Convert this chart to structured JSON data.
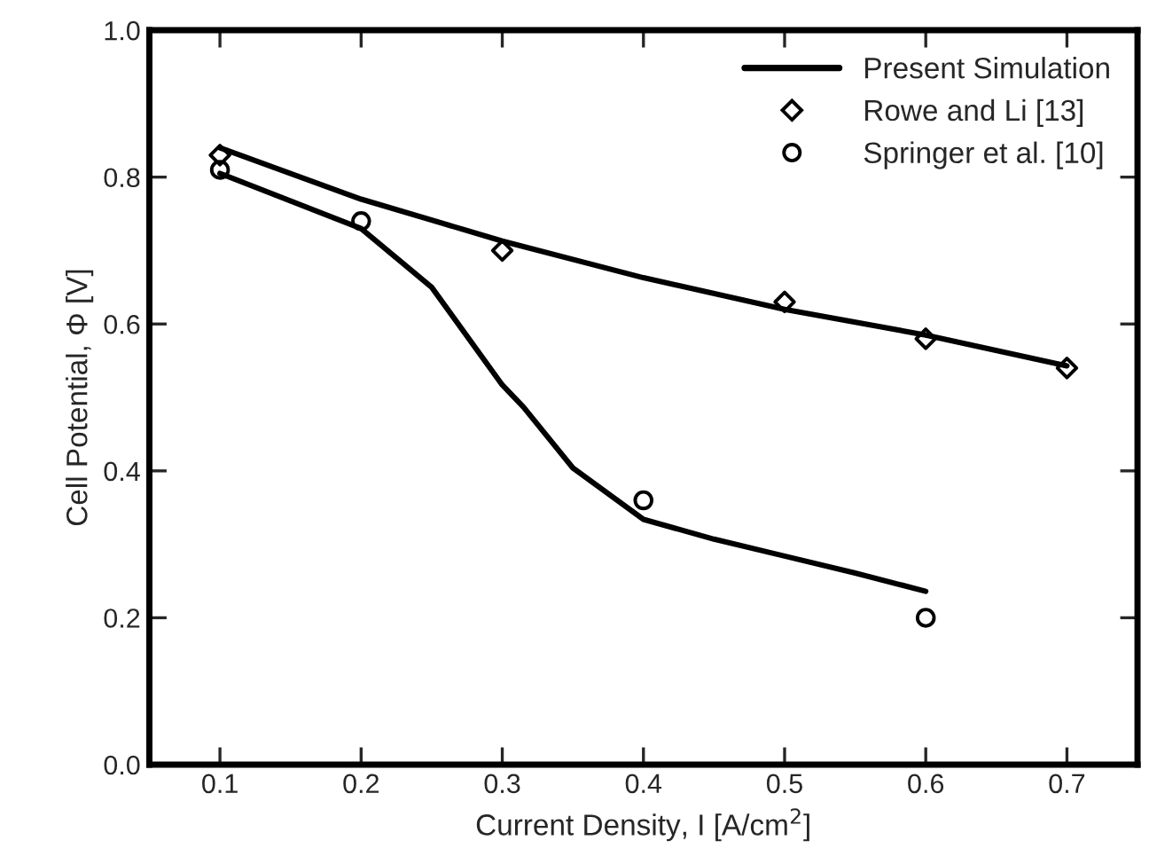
{
  "chart_data": {
    "type": "line",
    "xlabel": "Current Density, I [A/cm$^{2}$]",
    "ylabel": "Cell Potential, Φ [V]",
    "xlim": [
      0.05,
      0.75
    ],
    "ylim": [
      0.0,
      1.0
    ],
    "xticks": [
      0.1,
      0.2,
      0.3,
      0.4,
      0.5,
      0.6,
      0.7
    ],
    "yticks": [
      {
        "value": 0.0,
        "label": "0.0"
      },
      0.2,
      0.4,
      0.6,
      0.8,
      {
        "value": 1.0,
        "label": "1.0"
      }
    ],
    "grid": false,
    "legend": "top right",
    "series": [
      {
        "name": "Present Simulation",
        "color": "#000000",
        "marker": "none",
        "x": [
          0.1,
          0.2,
          0.3,
          0.4,
          0.5,
          0.6,
          0.7
        ],
        "values": [
          0.84,
          0.77,
          0.713,
          0.663,
          0.62,
          0.585,
          0.543
        ]
      },
      {
        "color": "#000000",
        "marker": "none",
        "x": [
          0.1,
          0.2,
          0.25,
          0.3,
          0.315,
          0.35,
          0.4,
          0.45,
          0.5,
          0.55,
          0.6
        ],
        "values": [
          0.805,
          0.73,
          0.65,
          0.517,
          0.487,
          0.404,
          0.334,
          0.307,
          0.284,
          0.261,
          0.236
        ]
      },
      {
        "name": "Rowe and Li [13]",
        "type": "scatter",
        "color": "#000000",
        "marker": "diamond",
        "x": [
          0.1,
          0.3,
          0.5,
          0.6,
          0.7
        ],
        "values": [
          0.83,
          0.7,
          0.63,
          0.58,
          0.54
        ]
      },
      {
        "name": "Springer et al. [10]",
        "type": "scatter",
        "color": "#000000",
        "marker": "circle",
        "x": [
          0.1,
          0.2,
          0.4,
          0.6
        ],
        "values": [
          0.81,
          0.74,
          0.36,
          0.2
        ]
      }
    ]
  }
}
